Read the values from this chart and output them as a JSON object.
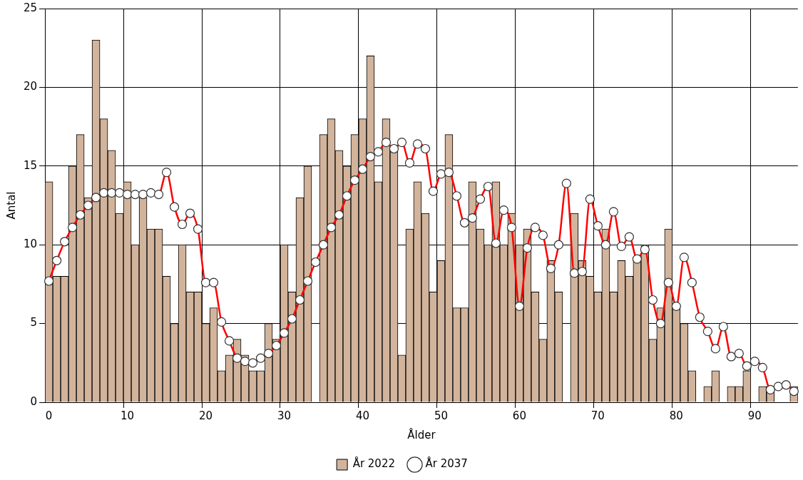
{
  "chart_data": {
    "type": "bar",
    "xlabel": "Ålder",
    "ylabel": "Antal",
    "categories": [
      "0",
      null,
      null,
      null,
      null,
      null,
      null,
      null,
      null,
      null,
      "10",
      null,
      null,
      null,
      null,
      null,
      null,
      null,
      null,
      null,
      "20",
      null,
      null,
      null,
      null,
      null,
      null,
      null,
      null,
      null,
      "30",
      null,
      null,
      null,
      null,
      null,
      null,
      null,
      null,
      null,
      "40",
      null,
      null,
      null,
      null,
      null,
      null,
      null,
      null,
      null,
      "50",
      null,
      null,
      null,
      null,
      null,
      null,
      null,
      null,
      null,
      "60",
      null,
      null,
      null,
      null,
      null,
      null,
      null,
      null,
      null,
      "70",
      null,
      null,
      null,
      null,
      null,
      null,
      null,
      null,
      null,
      "80",
      null,
      null,
      null,
      null,
      null,
      null,
      null,
      null,
      null,
      "90",
      null,
      null,
      null,
      null,
      null
    ],
    "series": [
      {
        "name": "År 2022",
        "color": "#d2b49c",
        "values": [
          14,
          8,
          8,
          15,
          17,
          13,
          23,
          18,
          16,
          12,
          14,
          10,
          13,
          11,
          11,
          8,
          5,
          10,
          7,
          7,
          5,
          6,
          2,
          3,
          4,
          3,
          2,
          2,
          5,
          4,
          10,
          7,
          13,
          15,
          null,
          17,
          18,
          16,
          15,
          17,
          18,
          22,
          14,
          18,
          16,
          3,
          11,
          14,
          12,
          7,
          9,
          17,
          6,
          6,
          14,
          11,
          10,
          14,
          10,
          12,
          10,
          11,
          7,
          4,
          9,
          7,
          null,
          12,
          9,
          8,
          7,
          11,
          7,
          9,
          8,
          9,
          10,
          4,
          6,
          11,
          6,
          5,
          2,
          0,
          1,
          2,
          0,
          1,
          1,
          2,
          0,
          1,
          1,
          0,
          0,
          1
        ]
      },
      {
        "name": "År 2037",
        "type": "line",
        "color": "#ff0000",
        "values": [
          7.7,
          9.0,
          10.2,
          11.1,
          11.9,
          12.5,
          13.0,
          13.3,
          13.3,
          13.3,
          13.2,
          13.2,
          13.2,
          13.3,
          13.2,
          14.6,
          12.4,
          11.3,
          12.0,
          11.0,
          7.6,
          7.6,
          5.1,
          3.9,
          2.8,
          2.6,
          2.5,
          2.8,
          3.1,
          3.6,
          4.4,
          5.3,
          6.5,
          7.7,
          8.9,
          10.0,
          11.1,
          11.9,
          13.1,
          14.1,
          14.8,
          15.6,
          15.9,
          16.5,
          16.1,
          16.5,
          15.2,
          16.4,
          16.1,
          13.4,
          14.5,
          14.6,
          13.1,
          11.4,
          11.7,
          12.9,
          13.7,
          10.1,
          12.2,
          11.1,
          6.1,
          9.8,
          11.1,
          10.6,
          8.5,
          10.0,
          13.9,
          8.2,
          8.3,
          12.9,
          11.2,
          10.0,
          12.1,
          9.9,
          10.5,
          9.1,
          9.7,
          6.5,
          5.0,
          7.6,
          6.1,
          9.2,
          7.6,
          5.4,
          4.5,
          3.4,
          4.8,
          2.9,
          3.1,
          2.3,
          2.6,
          2.2,
          0.8,
          1.0,
          1.1,
          0.7
        ]
      }
    ],
    "ylim": [
      0,
      25
    ],
    "yticks": [
      0,
      5,
      10,
      15,
      20,
      25
    ],
    "grid": true,
    "legend": "bottom",
    "marker": "circle"
  }
}
